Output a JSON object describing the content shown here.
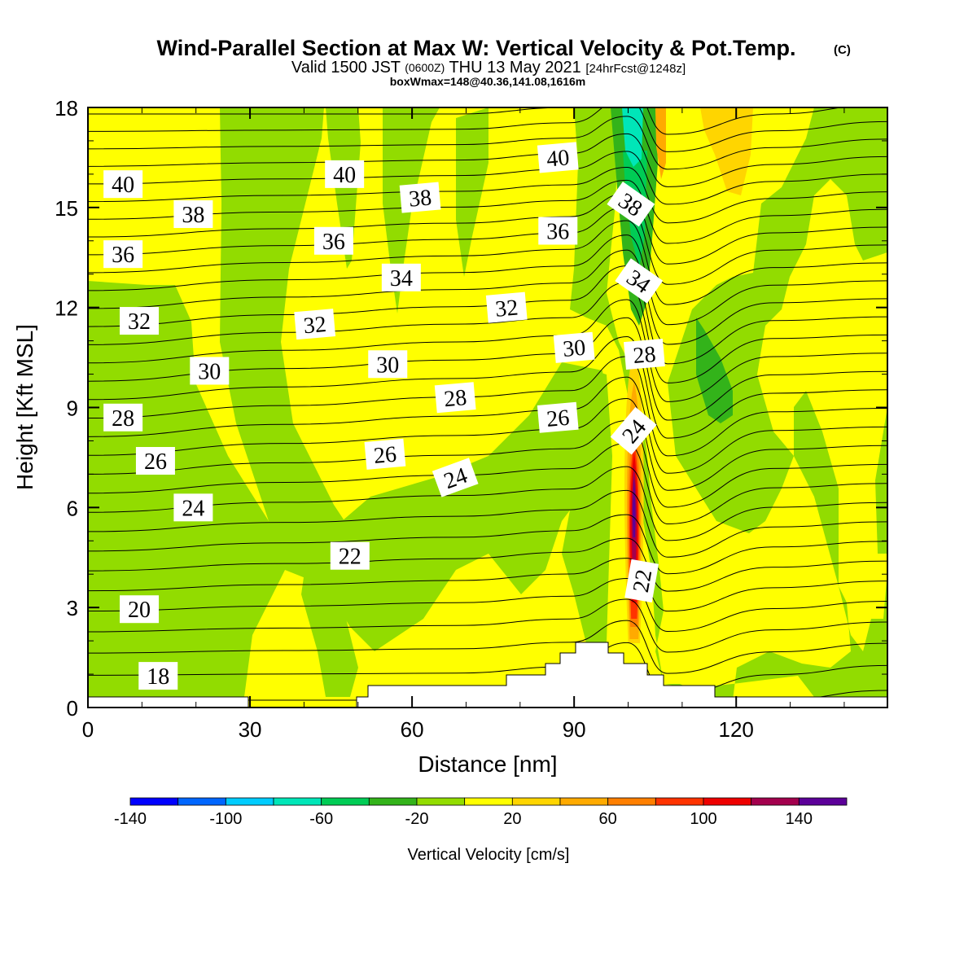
{
  "title": "Wind-Parallel Section at Max W: Vertical Velocity & Pot.Temp.",
  "copyright": "(C)",
  "subtitle": {
    "prefix": "Valid 1500 JST",
    "zulu": "(0600Z)",
    "date": "THU 13 May 2021",
    "fcst": "[24hrFcst@1248z]"
  },
  "box_line": "boxWmax=148@40.36,141.08,1616m",
  "chart_data": {
    "type": "heatmap",
    "xlabel": "Distance [nm]",
    "ylabel": "Height [Kft MSL]",
    "xlim": [
      0,
      148
    ],
    "ylim": [
      0,
      18
    ],
    "xticks": [
      0,
      30,
      60,
      90,
      120
    ],
    "yticks": [
      0,
      3,
      6,
      9,
      12,
      15,
      18
    ],
    "colorbar": {
      "label": "Vertical Velocity [cm/s]",
      "levels": [
        -140,
        -120,
        -100,
        -80,
        -60,
        -40,
        -20,
        0,
        20,
        40,
        60,
        80,
        100,
        120,
        140,
        160
      ],
      "tick_labels": [
        "-140",
        "-100",
        "-60",
        "-20",
        "20",
        "60",
        "100",
        "140"
      ],
      "colors": [
        "#0000ff",
        "#0066ff",
        "#00ccff",
        "#00e6b8",
        "#00cc55",
        "#33b31a",
        "#92dc00",
        "#ffff00",
        "#ffd500",
        "#ffaa00",
        "#ff7f00",
        "#ff3300",
        "#ee0000",
        "#a3004d",
        "#5c0099"
      ]
    },
    "theta_contour_labels": [
      {
        "text": "40",
        "x": 6.5,
        "y": 15.7,
        "angle": 0
      },
      {
        "text": "38",
        "x": 19.5,
        "y": 14.8,
        "angle": 0
      },
      {
        "text": "36",
        "x": 6.5,
        "y": 13.6,
        "angle": 0
      },
      {
        "text": "32",
        "x": 9.5,
        "y": 11.6,
        "angle": 0
      },
      {
        "text": "30",
        "x": 22.5,
        "y": 10.1,
        "angle": 0
      },
      {
        "text": "28",
        "x": 6.5,
        "y": 8.7,
        "angle": 0
      },
      {
        "text": "26",
        "x": 12.5,
        "y": 7.4,
        "angle": 0
      },
      {
        "text": "24",
        "x": 19.5,
        "y": 6.0,
        "angle": 0
      },
      {
        "text": "20",
        "x": 9.5,
        "y": 2.95,
        "angle": 0
      },
      {
        "text": "18",
        "x": 13,
        "y": 0.95,
        "angle": 0
      },
      {
        "text": "40",
        "x": 47.5,
        "y": 16.0,
        "angle": 0
      },
      {
        "text": "36",
        "x": 45.5,
        "y": 14.0,
        "angle": 0
      },
      {
        "text": "38",
        "x": 61.5,
        "y": 15.3,
        "angle": -5
      },
      {
        "text": "34",
        "x": 58,
        "y": 12.9,
        "angle": 0
      },
      {
        "text": "32",
        "x": 42,
        "y": 11.5,
        "angle": -5
      },
      {
        "text": "30",
        "x": 55.5,
        "y": 10.3,
        "angle": 0
      },
      {
        "text": "28",
        "x": 68,
        "y": 9.3,
        "angle": -5
      },
      {
        "text": "26",
        "x": 55,
        "y": 7.6,
        "angle": -5
      },
      {
        "text": "24",
        "x": 68,
        "y": 6.9,
        "angle": -20
      },
      {
        "text": "22",
        "x": 48.5,
        "y": 4.55,
        "angle": 0
      },
      {
        "text": "40",
        "x": 87,
        "y": 16.5,
        "angle": -5
      },
      {
        "text": "36",
        "x": 87,
        "y": 14.3,
        "angle": 0
      },
      {
        "text": "32",
        "x": 77.5,
        "y": 12.0,
        "angle": -5
      },
      {
        "text": "30",
        "x": 90,
        "y": 10.8,
        "angle": -5
      },
      {
        "text": "26",
        "x": 87,
        "y": 8.7,
        "angle": -5
      },
      {
        "text": "38",
        "x": 100.5,
        "y": 15.1,
        "angle": 35
      },
      {
        "text": "34",
        "x": 102,
        "y": 12.8,
        "angle": 35
      },
      {
        "text": "28",
        "x": 103,
        "y": 10.6,
        "angle": -5
      },
      {
        "text": "24",
        "x": 101,
        "y": 8.3,
        "angle": -50
      },
      {
        "text": "22",
        "x": 102.5,
        "y": 3.8,
        "angle": -80
      }
    ]
  }
}
